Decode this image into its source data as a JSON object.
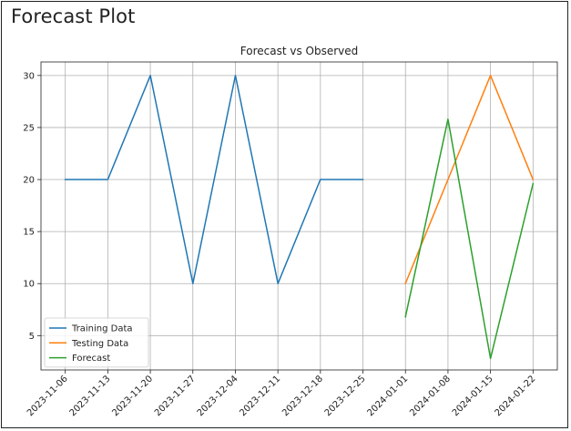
{
  "page": {
    "title": "Forecast Plot"
  },
  "chart_data": {
    "type": "line",
    "title": "Forecast vs Observed",
    "xlabel": "",
    "ylabel": "",
    "x_ticks": [
      "2023-11-06",
      "2023-11-13",
      "2023-11-20",
      "2023-11-27",
      "2023-12-04",
      "2023-12-11",
      "2023-12-18",
      "2023-12-25",
      "2024-01-01",
      "2024-01-08",
      "2024-01-15",
      "2024-01-22"
    ],
    "y_ticks": [
      5,
      10,
      15,
      20,
      25,
      30
    ],
    "xlim": [
      "2023-11-02",
      "2024-01-26"
    ],
    "ylim": [
      1.7,
      31.3
    ],
    "grid": true,
    "legend_position": "lower-left",
    "series": [
      {
        "name": "Training Data",
        "color": "#1f77b4",
        "points": [
          {
            "x": "2023-11-06",
            "y": 20
          },
          {
            "x": "2023-11-13",
            "y": 20
          },
          {
            "x": "2023-11-20",
            "y": 30
          },
          {
            "x": "2023-11-27",
            "y": 10
          },
          {
            "x": "2023-12-04",
            "y": 30
          },
          {
            "x": "2023-12-11",
            "y": 10
          },
          {
            "x": "2023-12-18",
            "y": 20
          },
          {
            "x": "2023-12-25",
            "y": 20
          }
        ]
      },
      {
        "name": "Testing Data",
        "color": "#ff7f0e",
        "points": [
          {
            "x": "2024-01-01",
            "y": 10
          },
          {
            "x": "2024-01-08",
            "y": 20
          },
          {
            "x": "2024-01-15",
            "y": 30
          },
          {
            "x": "2024-01-22",
            "y": 20
          }
        ]
      },
      {
        "name": "Forecast",
        "color": "#2ca02c",
        "points": [
          {
            "x": "2024-01-01",
            "y": 6.8
          },
          {
            "x": "2024-01-08",
            "y": 25.8
          },
          {
            "x": "2024-01-15",
            "y": 2.8
          },
          {
            "x": "2024-01-22",
            "y": 19.6
          }
        ]
      }
    ]
  }
}
